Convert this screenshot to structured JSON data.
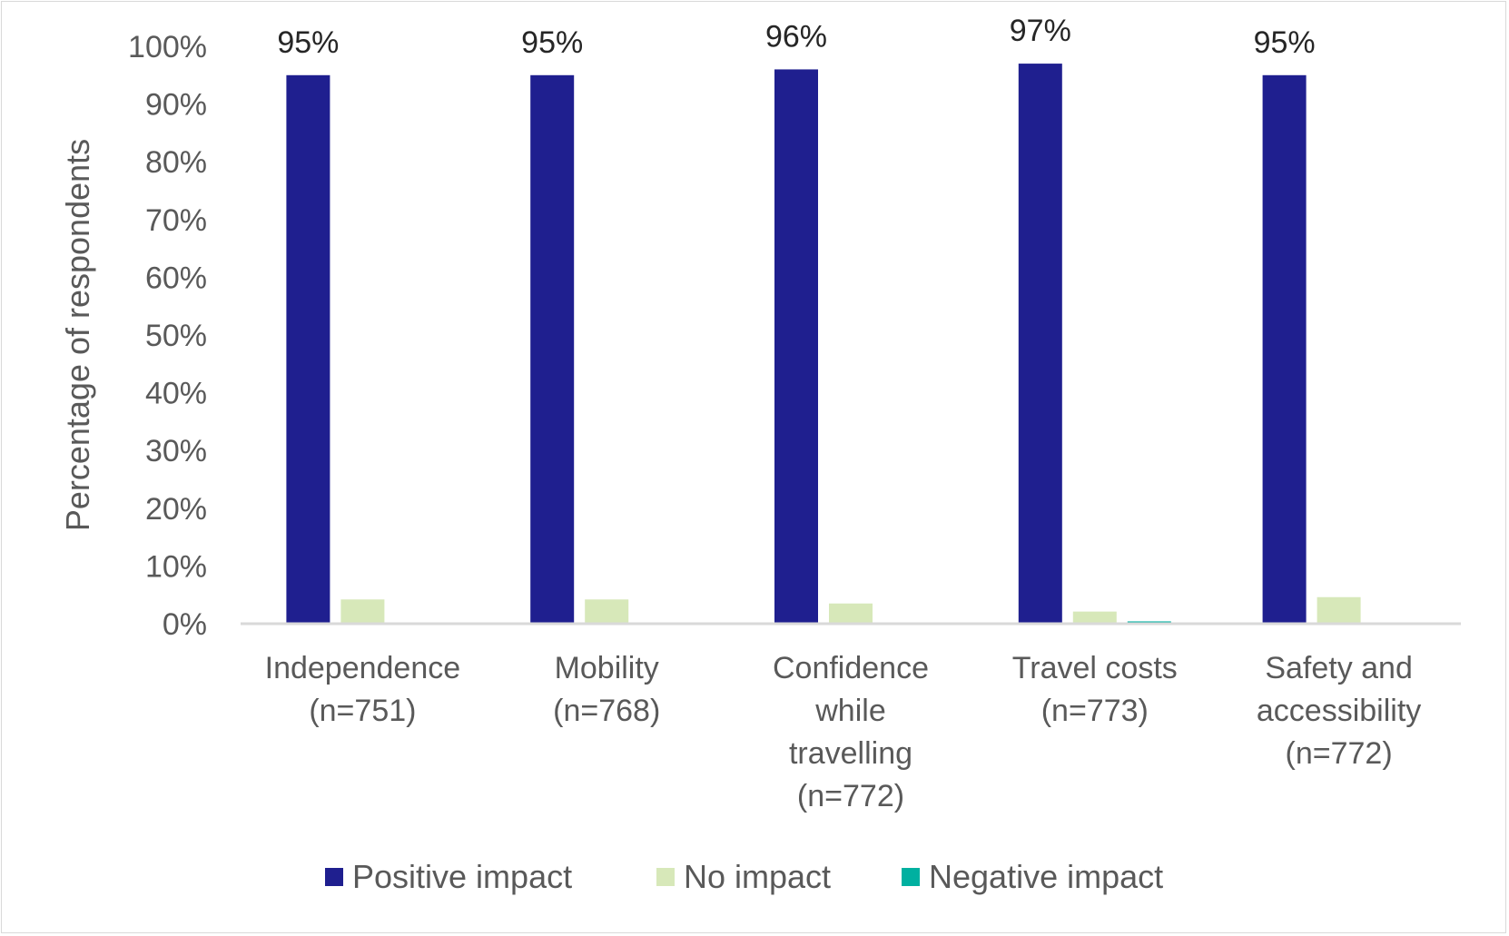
{
  "chart_data": {
    "type": "bar",
    "title": "",
    "xlabel": "",
    "ylabel": "Percentage of respondents",
    "ylim": [
      0,
      100
    ],
    "yticks": [
      "0%",
      "10%",
      "20%",
      "30%",
      "40%",
      "50%",
      "60%",
      "70%",
      "80%",
      "90%",
      "100%"
    ],
    "grid": false,
    "legend_position": "bottom",
    "categories": [
      [
        "Independence",
        "(n=751)"
      ],
      [
        "Mobility",
        "(n=768)"
      ],
      [
        "Confidence",
        "while",
        "travelling",
        "(n=772)"
      ],
      [
        "Travel costs",
        "(n=773)"
      ],
      [
        "Safety and",
        "accessibility",
        "(n=772)"
      ]
    ],
    "series": [
      {
        "name": "Positive impact",
        "color": "#1f1f8f",
        "values": [
          95,
          95,
          96,
          97,
          95
        ],
        "labels": [
          "95%",
          "95%",
          "96%",
          "97%",
          "95%"
        ]
      },
      {
        "name": "No impact",
        "color": "#d7e8b9",
        "values": [
          4.2,
          4.2,
          3.5,
          2.1,
          4.6
        ]
      },
      {
        "name": "Negative impact",
        "color": "#00b0a0",
        "values": [
          0,
          0.2,
          0,
          0.4,
          0
        ]
      }
    ]
  }
}
